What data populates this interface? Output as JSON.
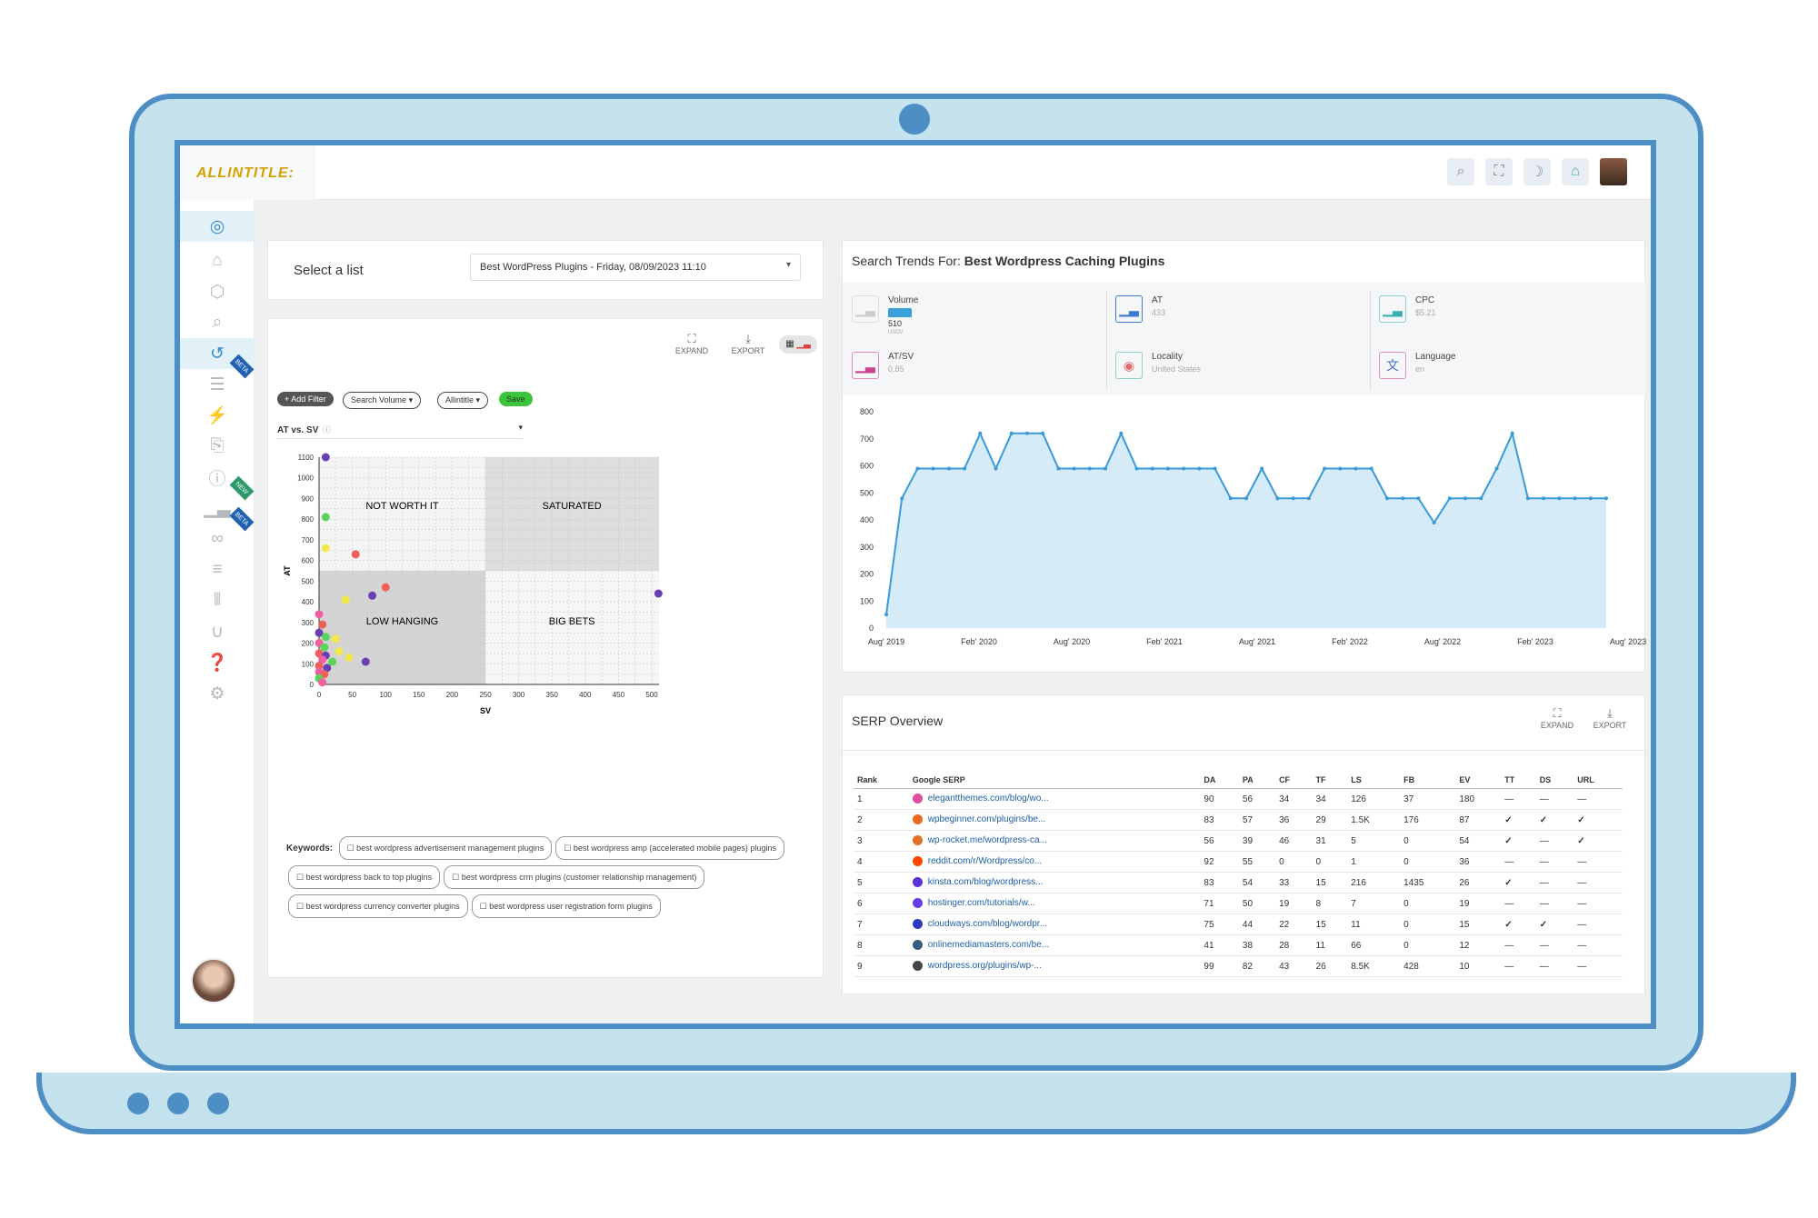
{
  "brand": {
    "logo_text": "ALLINTITLE:"
  },
  "topbar": {
    "icons": [
      "search-icon",
      "fullscreen-icon",
      "moon-icon",
      "bell-icon"
    ]
  },
  "sidebar": {
    "items": [
      "user-circle-icon",
      "home-icon",
      "cube-icon",
      "search-icon",
      "history-icon",
      "list-icon",
      "bolt-icon",
      "clipboard-icon",
      "question-icon",
      "bar-chart-icon",
      "link-icon",
      "database-icon",
      "sliders-icon",
      "magnet-icon",
      "help-icon",
      "gear-icon"
    ],
    "badge_beta": "BETA",
    "badge_new": "NEW"
  },
  "select_list": {
    "label": "Select a list",
    "value": "Best WordPress Plugins - Friday, 08/09/2023 11:10"
  },
  "scatter_panel": {
    "expand": "EXPAND",
    "export": "EXPORT",
    "add_filter": "+ Add Filter",
    "search_volume": "Search Volume",
    "allintitle": "Allintitle",
    "save": "Save",
    "metric_select": "AT vs. SV",
    "keywords_label": "Keywords:",
    "keywords": [
      "best wordpress advertisement management plugins",
      "best wordpress amp (accelerated mobile pages) plugins",
      "best wordpress back to top plugins",
      "best wordpress crm plugins (customer relationship management)",
      "best wordpress currency converter plugins",
      "best wordpress user registration form plugins"
    ]
  },
  "quadrants": {
    "tl": "NOT WORTH IT",
    "tr": "SATURATED",
    "bl": "LOW HANGING",
    "br": "BIG BETS"
  },
  "chart_data": [
    {
      "type": "scatter",
      "xlabel": "SV",
      "ylabel": "AT",
      "xlim": [
        0,
        500
      ],
      "ylim": [
        0,
        1100
      ],
      "xticks": [
        0,
        50,
        100,
        150,
        200,
        250,
        300,
        350,
        400,
        450,
        500
      ],
      "yticks": [
        0,
        100,
        200,
        300,
        400,
        500,
        600,
        700,
        800,
        900,
        1000,
        1100
      ],
      "points": [
        {
          "x": 10,
          "y": 1100,
          "color": "#6a3fb5"
        },
        {
          "x": 10,
          "y": 810,
          "color": "#5ad45a"
        },
        {
          "x": 10,
          "y": 660,
          "color": "#f2e84a"
        },
        {
          "x": 55,
          "y": 630,
          "color": "#f0605a"
        },
        {
          "x": 100,
          "y": 470,
          "color": "#f0605a"
        },
        {
          "x": 80,
          "y": 430,
          "color": "#6a3fb5"
        },
        {
          "x": 40,
          "y": 410,
          "color": "#f2e84a"
        },
        {
          "x": 510,
          "y": 440,
          "color": "#6a3fb5"
        },
        {
          "x": 0,
          "y": 340,
          "color": "#f060a0"
        },
        {
          "x": 5,
          "y": 290,
          "color": "#f0605a"
        },
        {
          "x": 0,
          "y": 250,
          "color": "#6a3fb5"
        },
        {
          "x": 10,
          "y": 230,
          "color": "#5ad45a"
        },
        {
          "x": 25,
          "y": 220,
          "color": "#f2e84a"
        },
        {
          "x": 0,
          "y": 200,
          "color": "#f060a0"
        },
        {
          "x": 8,
          "y": 180,
          "color": "#5ad45a"
        },
        {
          "x": 30,
          "y": 160,
          "color": "#f2e84a"
        },
        {
          "x": 0,
          "y": 150,
          "color": "#f0605a"
        },
        {
          "x": 10,
          "y": 140,
          "color": "#6a3fb5"
        },
        {
          "x": 45,
          "y": 130,
          "color": "#f2e84a"
        },
        {
          "x": 5,
          "y": 120,
          "color": "#f060a0"
        },
        {
          "x": 20,
          "y": 110,
          "color": "#5ad45a"
        },
        {
          "x": 70,
          "y": 110,
          "color": "#6a3fb5"
        },
        {
          "x": 0,
          "y": 90,
          "color": "#f0605a"
        },
        {
          "x": 12,
          "y": 80,
          "color": "#6a3fb5"
        },
        {
          "x": 0,
          "y": 60,
          "color": "#f060a0"
        },
        {
          "x": 8,
          "y": 50,
          "color": "#f0605a"
        },
        {
          "x": 0,
          "y": 30,
          "color": "#5ad45a"
        },
        {
          "x": 5,
          "y": 10,
          "color": "#f060a0"
        }
      ]
    },
    {
      "type": "area",
      "title": "Search Trends For: Best Wordpress Caching Plugins",
      "ylim": [
        0,
        800
      ],
      "yticks": [
        0,
        100,
        200,
        300,
        400,
        500,
        600,
        700,
        800
      ],
      "xticks": [
        "Aug' 2019",
        "Feb' 2020",
        "Aug' 2020",
        "Feb' 2021",
        "Aug' 2021",
        "Feb' 2022",
        "Aug' 2022",
        "Feb' 2023",
        "Aug' 2023"
      ],
      "values": [
        50,
        480,
        590,
        590,
        590,
        590,
        720,
        590,
        720,
        720,
        720,
        590,
        590,
        590,
        590,
        720,
        590,
        590,
        590,
        590,
        590,
        590,
        480,
        480,
        590,
        480,
        480,
        480,
        590,
        590,
        590,
        590,
        480,
        480,
        480,
        390,
        480,
        480,
        480,
        590,
        720,
        480,
        480,
        480,
        480,
        480,
        480
      ]
    }
  ],
  "trends": {
    "title_prefix": "Search Trends For:",
    "title_keyword": "Best Wordpress Caching Plugins",
    "metrics": [
      {
        "name": "Volume",
        "value": "510",
        "sub": "USDV"
      },
      {
        "name": "AT",
        "value": "433"
      },
      {
        "name": "CPC",
        "value": "$5.21"
      },
      {
        "name": "AT/SV",
        "value": "0.85"
      },
      {
        "name": "Locality",
        "value": "United States"
      },
      {
        "name": "Language",
        "value": "en"
      }
    ]
  },
  "serp": {
    "title": "SERP Overview",
    "expand": "EXPAND",
    "export": "EXPORT",
    "columns": [
      "Rank",
      "Google SERP",
      "DA",
      "PA",
      "CF",
      "TF",
      "LS",
      "FB",
      "EV",
      "TT",
      "DS",
      "URL"
    ],
    "rows": [
      {
        "rank": "1",
        "url": "elegantthemes.com/blog/wo...",
        "fav": "#e04fa0",
        "da": "90",
        "pa": "56",
        "cf": "34",
        "tf": "34",
        "ls": "126",
        "fb": "37",
        "ev": "180",
        "tt": "—",
        "ds": "—",
        "u": "—"
      },
      {
        "rank": "2",
        "url": "wpbeginner.com/plugins/be...",
        "fav": "#e86a20",
        "da": "83",
        "pa": "57",
        "cf": "36",
        "tf": "29",
        "ls": "1.5K",
        "fb": "176",
        "ev": "87",
        "tt": "✓",
        "ds": "✓",
        "u": "✓"
      },
      {
        "rank": "3",
        "url": "wp-rocket.me/wordpress-ca...",
        "fav": "#e0702a",
        "da": "56",
        "pa": "39",
        "cf": "46",
        "tf": "31",
        "ls": "5",
        "fb": "0",
        "ev": "54",
        "tt": "✓",
        "ds": "—",
        "u": "✓"
      },
      {
        "rank": "4",
        "url": "reddit.com/r/Wordpress/co...",
        "fav": "#ff4500",
        "da": "92",
        "pa": "55",
        "cf": "0",
        "tf": "0",
        "ls": "1",
        "fb": "0",
        "ev": "36",
        "tt": "—",
        "ds": "—",
        "u": "—"
      },
      {
        "rank": "5",
        "url": "kinsta.com/blog/wordpress...",
        "fav": "#5b32d6",
        "da": "83",
        "pa": "54",
        "cf": "33",
        "tf": "15",
        "ls": "216",
        "fb": "1435",
        "ev": "26",
        "tt": "✓",
        "ds": "—",
        "u": "—"
      },
      {
        "rank": "6",
        "url": "hostinger.com/tutorials/w...",
        "fav": "#673de6",
        "da": "71",
        "pa": "50",
        "cf": "19",
        "tf": "8",
        "ls": "7",
        "fb": "0",
        "ev": "19",
        "tt": "—",
        "ds": "—",
        "u": "—"
      },
      {
        "rank": "7",
        "url": "cloudways.com/blog/wordpr...",
        "fav": "#2c39bd",
        "da": "75",
        "pa": "44",
        "cf": "22",
        "tf": "15",
        "ls": "11",
        "fb": "0",
        "ev": "15",
        "tt": "✓",
        "ds": "✓",
        "u": "—"
      },
      {
        "rank": "8",
        "url": "onlinemediamasters.com/be...",
        "fav": "#3a5a7a",
        "da": "41",
        "pa": "38",
        "cf": "28",
        "tf": "11",
        "ls": "66",
        "fb": "0",
        "ev": "12",
        "tt": "—",
        "ds": "—",
        "u": "—"
      },
      {
        "rank": "9",
        "url": "wordpress.org/plugins/wp-...",
        "fav": "#464646",
        "da": "99",
        "pa": "82",
        "cf": "43",
        "tf": "26",
        "ls": "8.5K",
        "fb": "428",
        "ev": "10",
        "tt": "—",
        "ds": "—",
        "u": "—"
      }
    ]
  }
}
